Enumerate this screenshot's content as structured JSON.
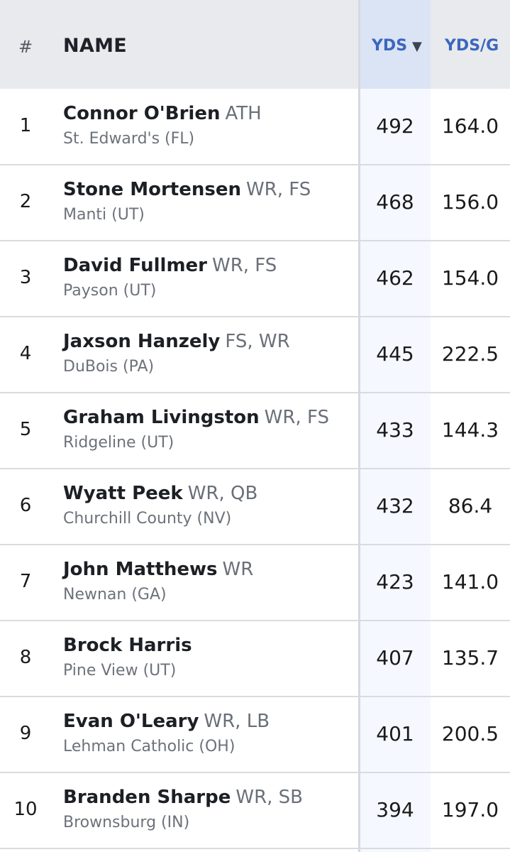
{
  "header": {
    "rank": "#",
    "name": "NAME",
    "yds": "YDS",
    "sort_indicator": "▼",
    "yds_per_game": "YDS/G"
  },
  "rows": [
    {
      "rank": "1",
      "name": "Connor O'Brien",
      "pos": "ATH",
      "school": "St. Edward's (FL)",
      "yds": "492",
      "ydsg": "164.0"
    },
    {
      "rank": "2",
      "name": "Stone Mortensen",
      "pos": "WR, FS",
      "school": "Manti (UT)",
      "yds": "468",
      "ydsg": "156.0"
    },
    {
      "rank": "3",
      "name": "David Fullmer",
      "pos": "WR, FS",
      "school": "Payson (UT)",
      "yds": "462",
      "ydsg": "154.0"
    },
    {
      "rank": "4",
      "name": "Jaxson Hanzely",
      "pos": "FS, WR",
      "school": "DuBois (PA)",
      "yds": "445",
      "ydsg": "222.5"
    },
    {
      "rank": "5",
      "name": "Graham Livingston",
      "pos": "WR, FS",
      "school": "Ridgeline (UT)",
      "yds": "433",
      "ydsg": "144.3"
    },
    {
      "rank": "6",
      "name": "Wyatt Peek",
      "pos": "WR, QB",
      "school": "Churchill County (NV)",
      "yds": "432",
      "ydsg": "86.4"
    },
    {
      "rank": "7",
      "name": "John Matthews",
      "pos": "WR",
      "school": "Newnan (GA)",
      "yds": "423",
      "ydsg": "141.0"
    },
    {
      "rank": "8",
      "name": "Brock Harris",
      "pos": "",
      "school": "Pine View (UT)",
      "yds": "407",
      "ydsg": "135.7"
    },
    {
      "rank": "9",
      "name": "Evan O'Leary",
      "pos": "WR, LB",
      "school": "Lehman Catholic (OH)",
      "yds": "401",
      "ydsg": "200.5"
    },
    {
      "rank": "10",
      "name": "Branden Sharpe",
      "pos": "WR, SB",
      "school": "Brownsburg (IN)",
      "yds": "394",
      "ydsg": "197.0"
    }
  ],
  "colors": {
    "header_bg": "#e9eaee",
    "sorted_header_bg": "#dbe4f5",
    "sorted_column_bg": "#f5f8fe",
    "header_link": "#3b67bd"
  }
}
